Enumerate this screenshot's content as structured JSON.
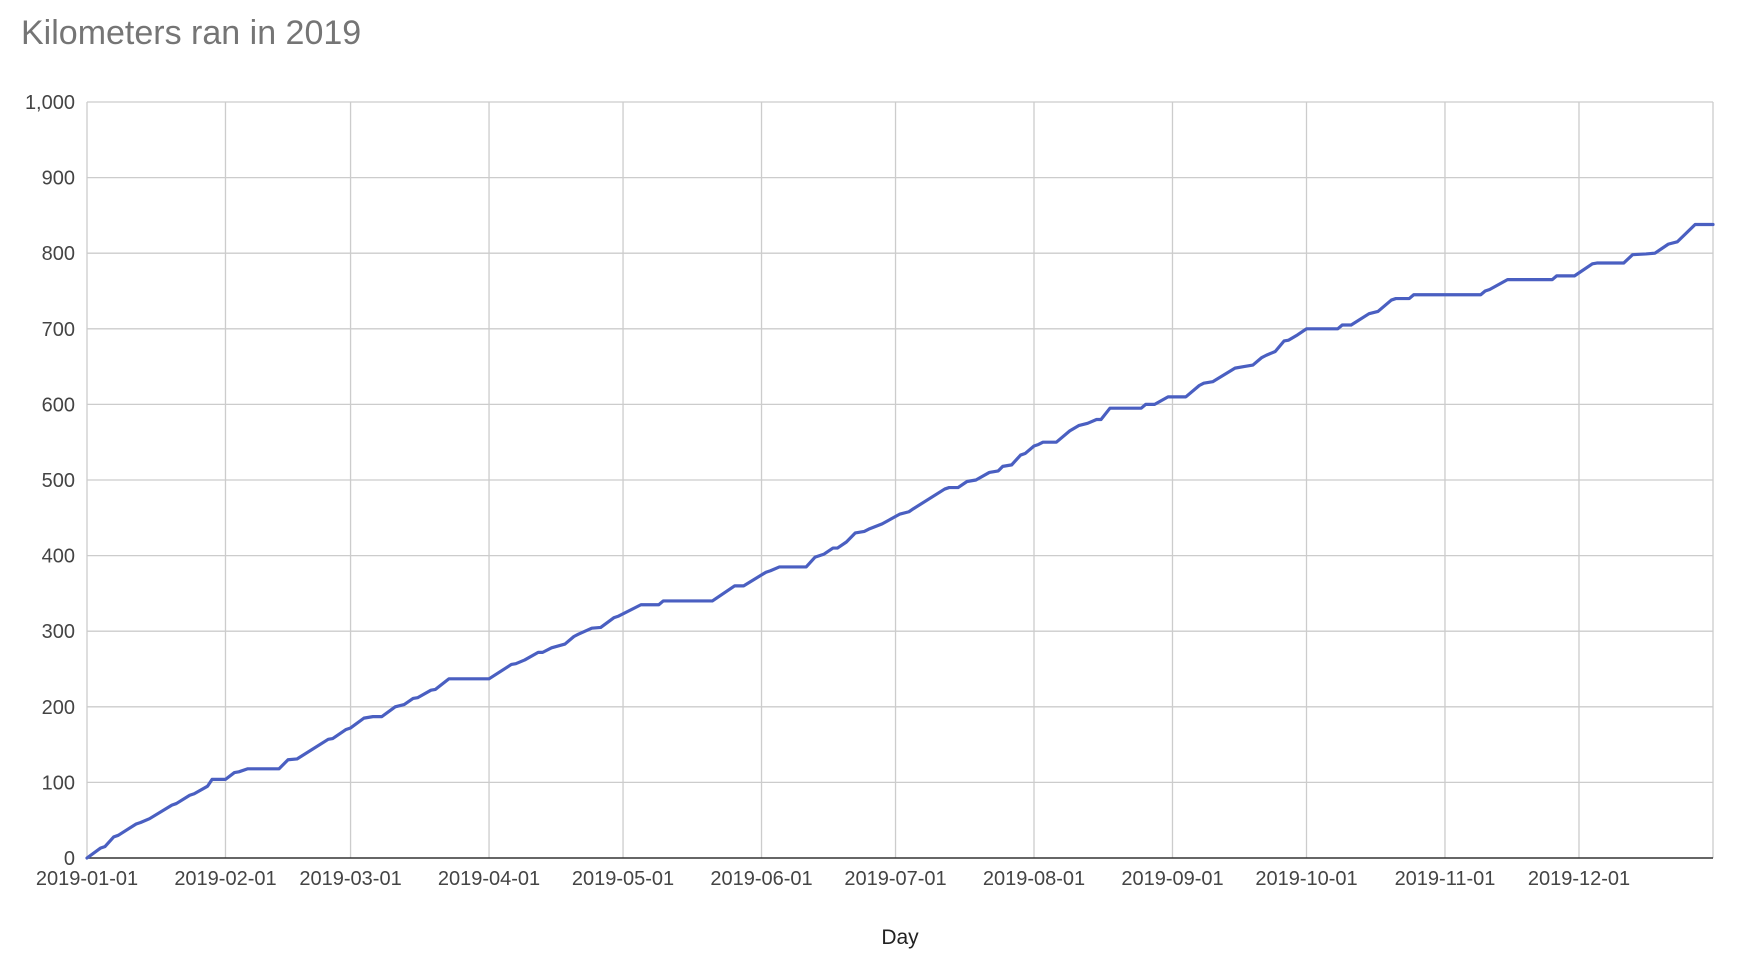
{
  "chart_data": {
    "type": "line",
    "title": "Kilometers ran in 2019",
    "xlabel": "Day",
    "ylabel": "",
    "ylim": [
      0,
      1000
    ],
    "xlim": [
      "2019-01-01",
      "2019-12-31"
    ],
    "grid": true,
    "legend": "none",
    "y_ticks": [
      0,
      100,
      200,
      300,
      400,
      500,
      600,
      700,
      800,
      900,
      1000
    ],
    "y_tick_labels": [
      "0",
      "100",
      "200",
      "300",
      "400",
      "500",
      "600",
      "700",
      "800",
      "900",
      "1,000"
    ],
    "x_ticks": [
      "2019-01-01",
      "2019-02-01",
      "2019-03-01",
      "2019-04-01",
      "2019-05-01",
      "2019-06-01",
      "2019-07-01",
      "2019-08-01",
      "2019-09-01",
      "2019-10-01",
      "2019-11-01",
      "2019-12-01"
    ],
    "series": [
      {
        "color": "#4a5fc1",
        "points": [
          [
            "2019-01-01",
            0
          ],
          [
            "2019-01-04",
            13
          ],
          [
            "2019-01-05",
            15
          ],
          [
            "2019-01-07",
            28
          ],
          [
            "2019-01-08",
            30
          ],
          [
            "2019-01-12",
            45
          ],
          [
            "2019-01-13",
            47
          ],
          [
            "2019-01-15",
            52
          ],
          [
            "2019-01-20",
            70
          ],
          [
            "2019-01-21",
            72
          ],
          [
            "2019-01-24",
            83
          ],
          [
            "2019-01-25",
            85
          ],
          [
            "2019-01-28",
            95
          ],
          [
            "2019-01-29",
            104
          ],
          [
            "2019-02-01",
            104
          ],
          [
            "2019-02-03",
            113
          ],
          [
            "2019-02-04",
            114
          ],
          [
            "2019-02-06",
            118
          ],
          [
            "2019-02-13",
            118
          ],
          [
            "2019-02-15",
            130
          ],
          [
            "2019-02-17",
            131
          ],
          [
            "2019-02-24",
            157
          ],
          [
            "2019-02-25",
            158
          ],
          [
            "2019-02-28",
            170
          ],
          [
            "2019-03-01",
            172
          ],
          [
            "2019-03-04",
            185
          ],
          [
            "2019-03-06",
            187
          ],
          [
            "2019-03-08",
            187
          ],
          [
            "2019-03-11",
            200
          ],
          [
            "2019-03-13",
            203
          ],
          [
            "2019-03-15",
            211
          ],
          [
            "2019-03-16",
            212
          ],
          [
            "2019-03-19",
            222
          ],
          [
            "2019-03-20",
            223
          ],
          [
            "2019-03-23",
            237
          ],
          [
            "2019-03-24",
            237
          ],
          [
            "2019-04-01",
            237
          ],
          [
            "2019-04-06",
            256
          ],
          [
            "2019-04-07",
            257
          ],
          [
            "2019-04-09",
            262
          ],
          [
            "2019-04-12",
            272
          ],
          [
            "2019-04-13",
            272
          ],
          [
            "2019-04-15",
            278
          ],
          [
            "2019-04-18",
            283
          ],
          [
            "2019-04-20",
            293
          ],
          [
            "2019-04-21",
            296
          ],
          [
            "2019-04-24",
            304
          ],
          [
            "2019-04-26",
            305
          ],
          [
            "2019-04-29",
            318
          ],
          [
            "2019-04-30",
            320
          ],
          [
            "2019-05-05",
            335
          ],
          [
            "2019-05-09",
            335
          ],
          [
            "2019-05-10",
            340
          ],
          [
            "2019-05-21",
            340
          ],
          [
            "2019-05-26",
            360
          ],
          [
            "2019-05-28",
            360
          ],
          [
            "2019-06-02",
            378
          ],
          [
            "2019-06-03",
            380
          ],
          [
            "2019-06-05",
            385
          ],
          [
            "2019-06-11",
            385
          ],
          [
            "2019-06-13",
            398
          ],
          [
            "2019-06-15",
            402
          ],
          [
            "2019-06-17",
            410
          ],
          [
            "2019-06-18",
            410
          ],
          [
            "2019-06-20",
            418
          ],
          [
            "2019-06-22",
            430
          ],
          [
            "2019-06-24",
            432
          ],
          [
            "2019-06-25",
            435
          ],
          [
            "2019-06-28",
            442
          ],
          [
            "2019-07-02",
            455
          ],
          [
            "2019-07-04",
            458
          ],
          [
            "2019-07-05",
            462
          ],
          [
            "2019-07-12",
            488
          ],
          [
            "2019-07-13",
            490
          ],
          [
            "2019-07-15",
            490
          ],
          [
            "2019-07-17",
            498
          ],
          [
            "2019-07-19",
            500
          ],
          [
            "2019-07-22",
            510
          ],
          [
            "2019-07-24",
            512
          ],
          [
            "2019-07-25",
            518
          ],
          [
            "2019-07-27",
            520
          ],
          [
            "2019-07-29",
            533
          ],
          [
            "2019-07-30",
            535
          ],
          [
            "2019-08-01",
            545
          ],
          [
            "2019-08-02",
            547
          ],
          [
            "2019-08-03",
            550
          ],
          [
            "2019-08-06",
            550
          ],
          [
            "2019-08-07",
            555
          ],
          [
            "2019-08-09",
            565
          ],
          [
            "2019-08-11",
            572
          ],
          [
            "2019-08-13",
            575
          ],
          [
            "2019-08-15",
            580
          ],
          [
            "2019-08-16",
            580
          ],
          [
            "2019-08-18",
            595
          ],
          [
            "2019-08-25",
            595
          ],
          [
            "2019-08-26",
            600
          ],
          [
            "2019-08-28",
            600
          ],
          [
            "2019-08-31",
            610
          ],
          [
            "2019-09-04",
            610
          ],
          [
            "2019-09-07",
            625
          ],
          [
            "2019-09-08",
            628
          ],
          [
            "2019-09-10",
            630
          ],
          [
            "2019-09-15",
            648
          ],
          [
            "2019-09-17",
            650
          ],
          [
            "2019-09-19",
            652
          ],
          [
            "2019-09-21",
            662
          ],
          [
            "2019-09-22",
            665
          ],
          [
            "2019-09-24",
            670
          ],
          [
            "2019-09-26",
            684
          ],
          [
            "2019-09-27",
            685
          ],
          [
            "2019-09-29",
            692
          ],
          [
            "2019-10-01",
            700
          ],
          [
            "2019-10-03",
            700
          ],
          [
            "2019-10-08",
            700
          ],
          [
            "2019-10-09",
            705
          ],
          [
            "2019-10-11",
            705
          ],
          [
            "2019-10-15",
            720
          ],
          [
            "2019-10-17",
            723
          ],
          [
            "2019-10-20",
            738
          ],
          [
            "2019-10-21",
            740
          ],
          [
            "2019-10-24",
            740
          ],
          [
            "2019-10-25",
            745
          ],
          [
            "2019-11-09",
            745
          ],
          [
            "2019-11-10",
            750
          ],
          [
            "2019-11-11",
            752
          ],
          [
            "2019-11-15",
            765
          ],
          [
            "2019-11-25",
            765
          ],
          [
            "2019-11-26",
            770
          ],
          [
            "2019-11-30",
            770
          ],
          [
            "2019-12-04",
            786
          ],
          [
            "2019-12-05",
            787
          ],
          [
            "2019-12-11",
            787
          ],
          [
            "2019-12-13",
            798
          ],
          [
            "2019-12-16",
            799
          ],
          [
            "2019-12-18",
            800
          ],
          [
            "2019-12-21",
            812
          ],
          [
            "2019-12-23",
            815
          ],
          [
            "2019-12-27",
            838
          ],
          [
            "2019-12-31",
            838
          ]
        ]
      }
    ]
  }
}
